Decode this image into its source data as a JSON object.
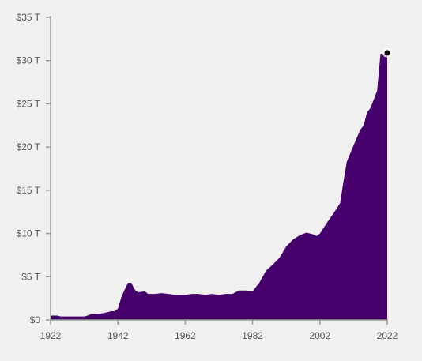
{
  "chart_data": {
    "type": "area",
    "title": "",
    "xlabel": "",
    "ylabel": "",
    "xlim": [
      1922,
      2022
    ],
    "ylim": [
      0,
      35
    ],
    "x_ticks": [
      1922,
      1942,
      1962,
      1982,
      2002,
      2022
    ],
    "x_tick_labels": [
      "1922",
      "1942",
      "1962",
      "1982",
      "2002",
      "2022"
    ],
    "y_ticks": [
      0,
      5,
      10,
      15,
      20,
      25,
      30,
      35
    ],
    "y_tick_labels": [
      "$0",
      "$5 T",
      "$10 T",
      "$15 T",
      "$20 T",
      "$25 T",
      "$30 T",
      "$35 T"
    ],
    "grid": false,
    "legend": "none",
    "fill_color": "#46006b",
    "marker_color": "#000000",
    "points": [
      {
        "x": 1922,
        "y": 0.5
      },
      {
        "x": 1924,
        "y": 0.5
      },
      {
        "x": 1925,
        "y": 0.4
      },
      {
        "x": 1928,
        "y": 0.4
      },
      {
        "x": 1932,
        "y": 0.4
      },
      {
        "x": 1933,
        "y": 0.5
      },
      {
        "x": 1934,
        "y": 0.7
      },
      {
        "x": 1936,
        "y": 0.7
      },
      {
        "x": 1938,
        "y": 0.8
      },
      {
        "x": 1940,
        "y": 1.0
      },
      {
        "x": 1941,
        "y": 1.0
      },
      {
        "x": 1942,
        "y": 1.3
      },
      {
        "x": 1943,
        "y": 2.6
      },
      {
        "x": 1944,
        "y": 3.5
      },
      {
        "x": 1945,
        "y": 4.3
      },
      {
        "x": 1946,
        "y": 4.3
      },
      {
        "x": 1947,
        "y": 3.5
      },
      {
        "x": 1948,
        "y": 3.2
      },
      {
        "x": 1950,
        "y": 3.3
      },
      {
        "x": 1951,
        "y": 3.0
      },
      {
        "x": 1953,
        "y": 3.0
      },
      {
        "x": 1955,
        "y": 3.1
      },
      {
        "x": 1957,
        "y": 3.0
      },
      {
        "x": 1959,
        "y": 2.9
      },
      {
        "x": 1962,
        "y": 2.9
      },
      {
        "x": 1964,
        "y": 3.0
      },
      {
        "x": 1966,
        "y": 3.0
      },
      {
        "x": 1968,
        "y": 2.9
      },
      {
        "x": 1970,
        "y": 3.0
      },
      {
        "x": 1972,
        "y": 2.9
      },
      {
        "x": 1974,
        "y": 3.0
      },
      {
        "x": 1976,
        "y": 3.0
      },
      {
        "x": 1978,
        "y": 3.4
      },
      {
        "x": 1980,
        "y": 3.4
      },
      {
        "x": 1982,
        "y": 3.3
      },
      {
        "x": 1984,
        "y": 4.3
      },
      {
        "x": 1986,
        "y": 5.7
      },
      {
        "x": 1988,
        "y": 6.4
      },
      {
        "x": 1990,
        "y": 7.2
      },
      {
        "x": 1992,
        "y": 8.5
      },
      {
        "x": 1994,
        "y": 9.3
      },
      {
        "x": 1996,
        "y": 9.8
      },
      {
        "x": 1998,
        "y": 10.1
      },
      {
        "x": 2000,
        "y": 9.9
      },
      {
        "x": 2001,
        "y": 9.7
      },
      {
        "x": 2002,
        "y": 10.0
      },
      {
        "x": 2004,
        "y": 11.2
      },
      {
        "x": 2006,
        "y": 12.3
      },
      {
        "x": 2008,
        "y": 13.5
      },
      {
        "x": 2009,
        "y": 16.0
      },
      {
        "x": 2010,
        "y": 18.3
      },
      {
        "x": 2012,
        "y": 20.2
      },
      {
        "x": 2014,
        "y": 22.0
      },
      {
        "x": 2015,
        "y": 22.5
      },
      {
        "x": 2016,
        "y": 24.0
      },
      {
        "x": 2017,
        "y": 24.5
      },
      {
        "x": 2018,
        "y": 25.5
      },
      {
        "x": 2019,
        "y": 26.5
      },
      {
        "x": 2020,
        "y": 30.8
      },
      {
        "x": 2021,
        "y": 30.8
      },
      {
        "x": 2022,
        "y": 30.9
      }
    ],
    "highlight_point": {
      "x": 2022,
      "y": 30.9
    }
  }
}
